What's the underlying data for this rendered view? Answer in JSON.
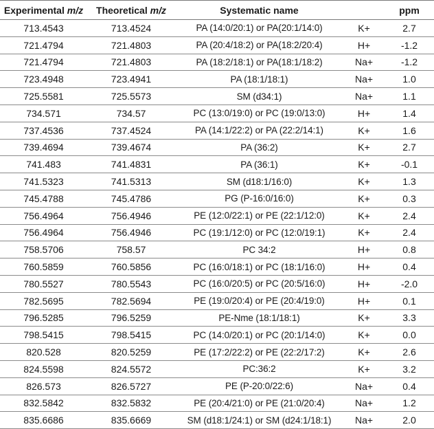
{
  "table": {
    "headers": [
      {
        "text": "Experimental ",
        "em": "m/z"
      },
      {
        "text": "Theoretical ",
        "em": "m/z"
      },
      {
        "text": "Systematic name",
        "em": ""
      },
      {
        "text": "",
        "em": ""
      },
      {
        "text": "ppm",
        "em": ""
      }
    ],
    "rows": [
      [
        "713.4543",
        "713.4524",
        "PA (14:0/20:1) or PA(20:1/14:0)",
        "K+",
        "2.7"
      ],
      [
        "721.4794",
        "721.4803",
        "PA (20:4/18:2) or PA(18:2/20:4)",
        "H+",
        "-1.2"
      ],
      [
        "721.4794",
        "721.4803",
        "PA (18:2/18:1) or PA(18:1/18:2)",
        "Na+",
        "-1.2"
      ],
      [
        "723.4948",
        "723.4941",
        "PA (18:1/18:1)",
        "Na+",
        "1.0"
      ],
      [
        "725.5581",
        "725.5573",
        "SM (d34:1)",
        "Na+",
        "1.1"
      ],
      [
        "734.571",
        "734.57",
        "PC (13:0/19:0) or PC (19:0/13:0)",
        "H+",
        "1.4"
      ],
      [
        "737.4536",
        "737.4524",
        "PA (14:1/22:2) or PA (22:2/14:1)",
        "K+",
        "1.6"
      ],
      [
        "739.4694",
        "739.4674",
        "PA (36:2)",
        "K+",
        "2.7"
      ],
      [
        "741.483",
        "741.4831",
        "PA (36:1)",
        "K+",
        "-0.1"
      ],
      [
        "741.5323",
        "741.5313",
        "SM (d18:1/16:0)",
        "K+",
        "1.3"
      ],
      [
        "745.4788",
        "745.4786",
        "PG (P-16:0/16:0)",
        "K+",
        "0.3"
      ],
      [
        "756.4964",
        "756.4946",
        "PE (12:0/22:1) or PE (22:1/12:0)",
        "K+",
        "2.4"
      ],
      [
        "756.4964",
        "756.4946",
        "PC (19:1/12:0) or PC (12:0/19:1)",
        "K+",
        "2.4"
      ],
      [
        "758.5706",
        "758.57",
        "PC 34:2",
        "H+",
        "0.8"
      ],
      [
        "760.5859",
        "760.5856",
        "PC (16:0/18:1) or PC (18:1/16:0)",
        "H+",
        "0.4"
      ],
      [
        "780.5527",
        "780.5543",
        "PC (16:0/20:5) or PC (20:5/16:0)",
        "H+",
        "-2.0"
      ],
      [
        "782.5695",
        "782.5694",
        "PE (19:0/20:4) or PE (20:4/19:0)",
        "H+",
        "0.1"
      ],
      [
        "796.5285",
        "796.5259",
        "PE-Nme (18:1/18:1)",
        "K+",
        "3.3"
      ],
      [
        "798.5415",
        "798.5415",
        "PC (14:0/20:1) or PC (20:1/14:0)",
        "K+",
        "0.0"
      ],
      [
        "820.528",
        "820.5259",
        "PE (17:2/22:2) or PE (22:2/17:2)",
        "K+",
        "2.6"
      ],
      [
        "824.5598",
        "824.5572",
        "PC:36:2",
        "K+",
        "3.2"
      ],
      [
        "826.573",
        "826.5727",
        "PE (P-20:0/22:6)",
        "Na+",
        "0.4"
      ],
      [
        "832.5842",
        "832.5832",
        "PE (20:4/21:0) or PE (21:0/20:4)",
        "Na+",
        "1.2"
      ],
      [
        "835.6686",
        "835.6669",
        "SM (d18:1/24:1) or SM (d24:1/18:1)",
        "Na+",
        "2.0"
      ]
    ]
  }
}
